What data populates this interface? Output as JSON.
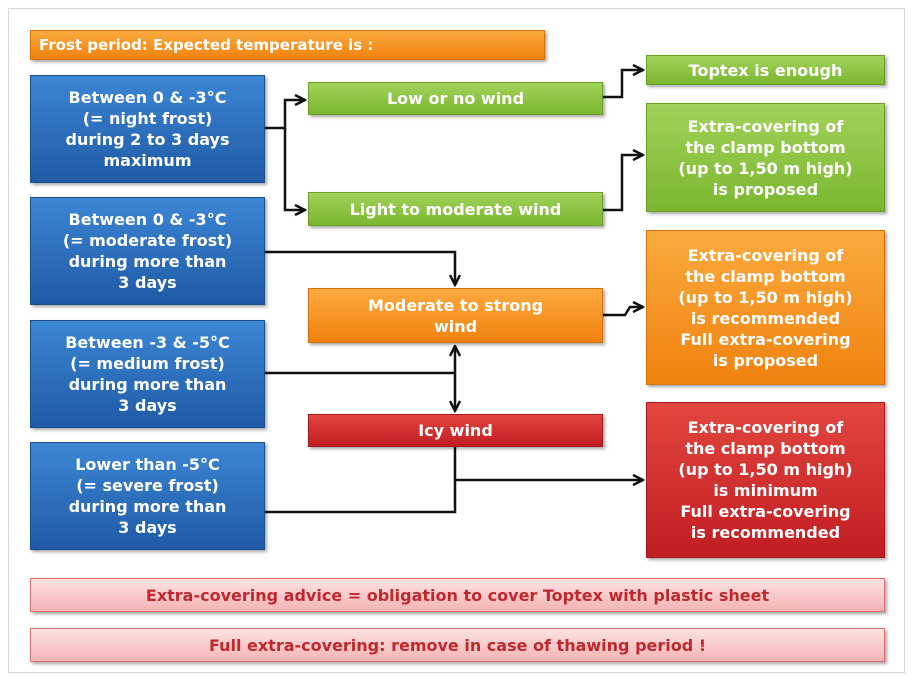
{
  "header": {
    "title": "Frost period: Expected temperature is :"
  },
  "conditions": [
    {
      "lines": [
        "Between 0 & -3°C",
        "(= night frost)",
        "during 2 to 3 days",
        "maximum"
      ]
    },
    {
      "lines": [
        "Between 0 & -3°C",
        "(= moderate frost)",
        "during more than",
        "3 days"
      ]
    },
    {
      "lines": [
        "Between -3 & -5°C",
        "(= medium frost)",
        "during more than",
        "3 days"
      ]
    },
    {
      "lines": [
        "Lower than -5°C",
        "(= severe frost)",
        "during more than",
        "3 days"
      ]
    }
  ],
  "winds": [
    {
      "lines": [
        "Low or no wind"
      ]
    },
    {
      "lines": [
        "Light to moderate wind"
      ]
    },
    {
      "lines": [
        "Moderate to strong",
        "wind"
      ]
    },
    {
      "lines": [
        "Icy wind"
      ]
    }
  ],
  "outcomes": [
    {
      "lines": [
        "Toptex is enough"
      ]
    },
    {
      "lines": [
        "Extra-covering of",
        "the clamp bottom",
        "(up to 1,50 m high)",
        "is proposed"
      ]
    },
    {
      "lines": [
        "Extra-covering of",
        "the clamp bottom",
        "(up to 1,50 m high)",
        "is recommended",
        "Full extra-covering",
        "is proposed"
      ]
    },
    {
      "lines": [
        "Extra-covering of",
        "the clamp bottom",
        "(up to 1,50 m high)",
        "is minimum",
        "Full extra-covering",
        "is recommended"
      ]
    }
  ],
  "notes": [
    {
      "lines": [
        "Extra-covering advice = obligation to cover Toptex with plastic sheet"
      ]
    },
    {
      "lines": [
        "Full extra-covering: remove in case of thawing period !"
      ]
    }
  ]
}
